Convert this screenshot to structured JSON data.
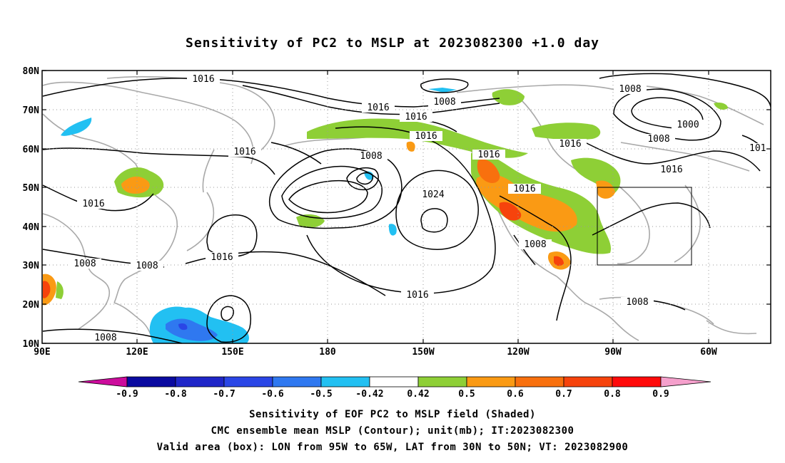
{
  "title": "Sensitivity of PC2 to MSLP at 2023082300 +1.0 day",
  "lat_labels": [
    "80N",
    "70N",
    "60N",
    "50N",
    "40N",
    "30N",
    "20N",
    "10N"
  ],
  "lon_labels": [
    "90E",
    "120E",
    "150E",
    "180",
    "150W",
    "120W",
    "90W",
    "60W"
  ],
  "contour_labels": [
    "1016",
    "1008",
    "1016",
    "1016",
    "1016",
    "1016",
    "1008",
    "1008",
    "1000",
    "1008",
    "1016",
    "101",
    "1016",
    "1016",
    "1024",
    "1016",
    "1008",
    "1016",
    "1008",
    "1008",
    "1016",
    "1008",
    "1008"
  ],
  "colorbar": {
    "labels": [
      "-0.9",
      "-0.8",
      "-0.7",
      "-0.6",
      "-0.5",
      "-0.42",
      "0.42",
      "0.5",
      "0.6",
      "0.7",
      "0.8",
      "0.9"
    ],
    "colors": [
      "#cc0c9c",
      "#0a0aa0",
      "#1f26c8",
      "#2a46e6",
      "#2f78f0",
      "#22c0f2",
      "#ffffff",
      "#8ecf36",
      "#fa9a14",
      "#f8700e",
      "#f6430c",
      "#ff0a0a",
      "#f5a0cc"
    ]
  },
  "caption": {
    "line1": "Sensitivity of EOF PC2 to MSLP field (Shaded)",
    "line2": "CMC ensemble mean MSLP (Contour); unit(mb); IT:2023082300",
    "line3": "Valid area (box): LON from 95W to 65W, LAT from 30N to 50N; VT: 2023082900"
  },
  "valid_box": {
    "lon_min": -95,
    "lon_max": -65,
    "lat_min": 30,
    "lat_max": 50
  }
}
